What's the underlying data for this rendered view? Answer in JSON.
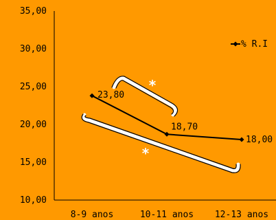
{
  "chart_data": {
    "type": "line",
    "categories": [
      "8-9 anos",
      "10-11 anos",
      "12-13 anos"
    ],
    "series": [
      {
        "name": "% R.I",
        "values": [
          23.8,
          18.7,
          18.0
        ],
        "color": "#000000"
      }
    ],
    "data_labels": [
      "23,80",
      "18,70",
      "18,00"
    ],
    "y_ticks": [
      "10,00",
      "15,00",
      "20,00",
      "25,00",
      "30,00",
      "35,00"
    ],
    "ylim": [
      10,
      35
    ],
    "title": "",
    "xlabel": "",
    "ylabel": "",
    "legend": {
      "position": "right",
      "label": "% R.I"
    },
    "grid": false,
    "annotations": [
      {
        "name": "significance-8-9-vs-10-11",
        "symbol": "*"
      },
      {
        "name": "significance-8-9-vs-12-13",
        "symbol": "*"
      }
    ],
    "background": "#FF9900"
  }
}
